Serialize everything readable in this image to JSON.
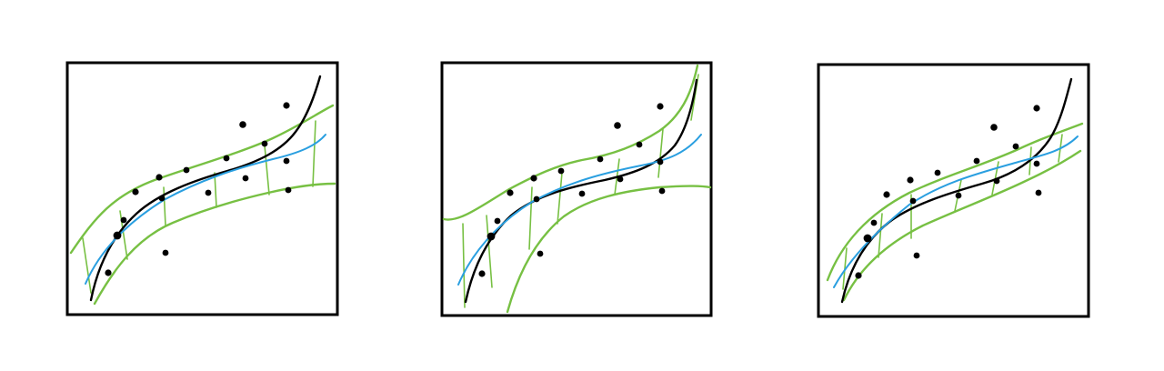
{
  "colors": {
    "background": "#ffffff",
    "frame": "#000000",
    "points": "#000000",
    "true_curve": "#000000",
    "fitted_curve": "#2a9fe0",
    "interval_band": "#77c043"
  },
  "panels": [
    {
      "id": "left",
      "band": "narrow-smooth"
    },
    {
      "id": "middle",
      "band": "wide-flaring"
    },
    {
      "id": "right",
      "band": "narrow-tight"
    }
  ]
}
